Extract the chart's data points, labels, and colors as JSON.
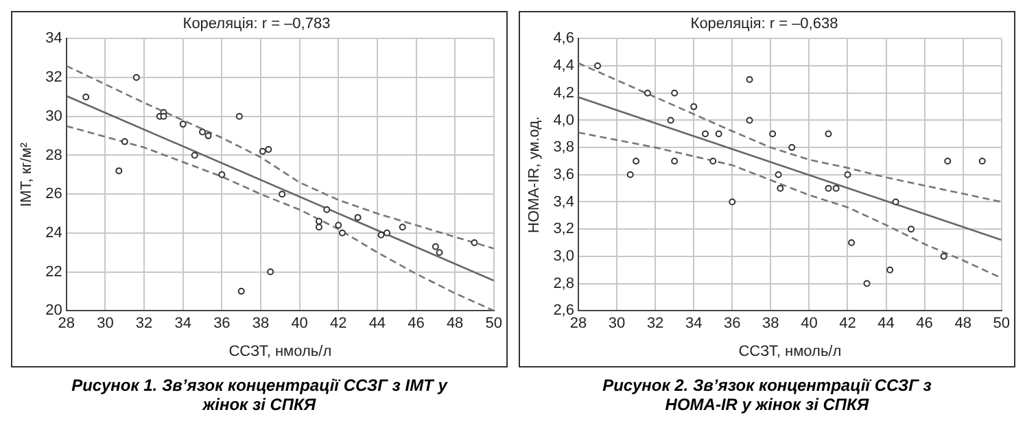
{
  "chart_data": [
    {
      "type": "scatter",
      "title": "Кореляція: r = –0,783",
      "xlabel": "ССЗТ, нмоль/л",
      "ylabel": "ІМТ, кг/м²",
      "annotations": [
        "Рисунок 1.  Зв’язок концентрації ССЗГ з ІМТ у жінок зі СПКЯ"
      ],
      "xlim": [
        28,
        50
      ],
      "xticks": [
        28,
        30,
        32,
        34,
        36,
        38,
        40,
        42,
        44,
        46,
        48,
        50
      ],
      "ylim": [
        20,
        34
      ],
      "yticks": [
        20,
        22,
        24,
        26,
        28,
        30,
        32,
        34
      ],
      "grid": true,
      "legend": false,
      "series": [
        {
          "type": "scatter",
          "marker": "circle",
          "color": "#333333",
          "x": [
            29,
            30.7,
            31,
            31.6,
            32.8,
            33,
            33,
            34,
            34.6,
            35,
            35.3,
            36,
            36.9,
            37,
            38.1,
            38.4,
            38.5,
            39.1,
            41,
            41,
            41.4,
            42,
            42.2,
            43,
            44.2,
            44.5,
            45.3,
            47,
            47.2,
            49
          ],
          "values": [
            31,
            27.2,
            28.7,
            32,
            30,
            30.2,
            30,
            29.6,
            28,
            29.2,
            29,
            27,
            30,
            21,
            28.2,
            28.3,
            22,
            26,
            24.6,
            24.3,
            25.2,
            24.4,
            24,
            24.8,
            23.9,
            24,
            24.3,
            23.3,
            23,
            23.5
          ]
        },
        {
          "type": "line",
          "line_style": "solid",
          "color": "#666666",
          "x": [
            28,
            50
          ],
          "values": [
            31.05,
            21.55
          ]
        },
        {
          "type": "line",
          "line_style": "dashed",
          "color": "#777777",
          "x": [
            28,
            32,
            36,
            38,
            40,
            42,
            44,
            46,
            48,
            50
          ],
          "values": [
            32.6,
            30.7,
            28.9,
            27.9,
            26.6,
            25.7,
            25,
            24.4,
            23.8,
            23.2
          ]
        },
        {
          "type": "line",
          "line_style": "dashed",
          "color": "#777777",
          "x": [
            28,
            32,
            36,
            38,
            40,
            42,
            44,
            46,
            48,
            50
          ],
          "values": [
            29.5,
            28.4,
            26.9,
            26,
            25.2,
            24.2,
            23,
            21.9,
            20.9,
            20
          ]
        }
      ]
    },
    {
      "type": "scatter",
      "title": "Кореляція: r = –0,638",
      "xlabel": "ССЗТ, нмоль/л",
      "ylabel": "HOMA-IR, ум.од.",
      "annotations": [
        "Рисунок 2.  Зв’язок концентрації ССЗГ з HOMA-IR у жінок зі СПКЯ"
      ],
      "xlim": [
        28,
        50
      ],
      "xticks": [
        28,
        30,
        32,
        34,
        36,
        38,
        40,
        42,
        44,
        46,
        48,
        50
      ],
      "ylim": [
        2.6,
        4.6
      ],
      "yticks": [
        {
          "value": 2.6,
          "label": "2,6"
        },
        {
          "value": 2.8,
          "label": "2,8"
        },
        {
          "value": 3.0,
          "label": "3,0"
        },
        {
          "value": 3.2,
          "label": "3,2"
        },
        {
          "value": 3.4,
          "label": "3,4"
        },
        {
          "value": 3.6,
          "label": "3,6"
        },
        {
          "value": 3.8,
          "label": "3,8"
        },
        {
          "value": 4.0,
          "label": "4,0"
        },
        {
          "value": 4.2,
          "label": "4,2"
        },
        {
          "value": 4.4,
          "label": "4,4"
        },
        {
          "value": 4.6,
          "label": "4,6"
        }
      ],
      "grid": true,
      "legend": false,
      "series": [
        {
          "type": "scatter",
          "marker": "circle",
          "color": "#333333",
          "x": [
            29,
            30.7,
            31,
            31.6,
            32.8,
            33,
            33,
            34,
            34.6,
            35,
            35.3,
            36,
            36.9,
            36.9,
            38.1,
            38.4,
            38.5,
            39.1,
            41,
            41,
            41.4,
            42,
            42.2,
            43,
            44.2,
            44.5,
            45.3,
            47,
            47.2,
            49
          ],
          "values": [
            4.4,
            3.6,
            3.7,
            4.2,
            4.0,
            4.2,
            3.7,
            4.1,
            3.9,
            3.7,
            3.9,
            3.4,
            4.3,
            4.0,
            3.9,
            3.6,
            3.5,
            3.8,
            3.9,
            3.5,
            3.5,
            3.6,
            3.1,
            2.8,
            2.9,
            3.4,
            3.2,
            3.0,
            3.7,
            3.7
          ]
        },
        {
          "type": "line",
          "line_style": "solid",
          "color": "#666666",
          "x": [
            28,
            50
          ],
          "values": [
            4.17,
            3.12
          ]
        },
        {
          "type": "line",
          "line_style": "dashed",
          "color": "#777777",
          "x": [
            28,
            32,
            36,
            38,
            40,
            42,
            44,
            46,
            48,
            50
          ],
          "values": [
            4.42,
            4.17,
            3.92,
            3.8,
            3.71,
            3.65,
            3.58,
            3.52,
            3.46,
            3.4
          ]
        },
        {
          "type": "line",
          "line_style": "dashed",
          "color": "#777777",
          "x": [
            28,
            32,
            36,
            38,
            40,
            42,
            44,
            46,
            48,
            50
          ],
          "values": [
            3.91,
            3.8,
            3.67,
            3.56,
            3.45,
            3.36,
            3.23,
            3.09,
            2.97,
            2.84
          ]
        }
      ]
    }
  ]
}
